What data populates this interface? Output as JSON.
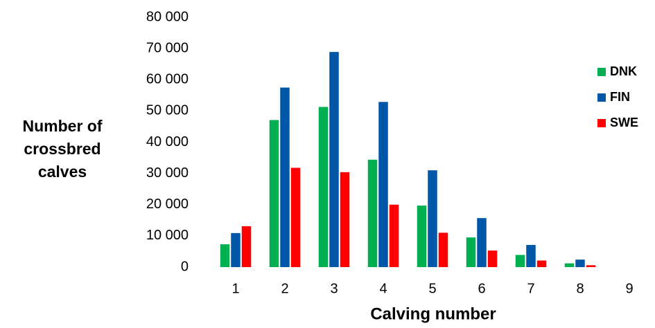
{
  "chart_data": {
    "type": "bar",
    "ylabel": [
      "Number of",
      "crossbred",
      "calves"
    ],
    "xlabel": "Calving number",
    "categories": [
      "1",
      "2",
      "3",
      "4",
      "5",
      "6",
      "7",
      "8",
      "9"
    ],
    "series": [
      {
        "name": "DNK",
        "color": "#00b050",
        "values": [
          7300,
          47100,
          51300,
          34400,
          19700,
          9500,
          3900,
          1200,
          0
        ]
      },
      {
        "name": "FIN",
        "color": "#0057a8",
        "values": [
          10900,
          57500,
          68900,
          52900,
          31000,
          15700,
          7100,
          2400,
          0
        ]
      },
      {
        "name": "SWE",
        "color": "#ff0000",
        "values": [
          13100,
          31800,
          30400,
          20000,
          11000,
          5300,
          2100,
          600,
          0
        ]
      }
    ],
    "ylim": [
      0,
      80000
    ],
    "yticks": [
      {
        "value": 0,
        "label": "0"
      },
      {
        "value": 10000,
        "label": "10 000"
      },
      {
        "value": 20000,
        "label": "20 000"
      },
      {
        "value": 30000,
        "label": "30 000"
      },
      {
        "value": 40000,
        "label": "40 000"
      },
      {
        "value": 50000,
        "label": "50 000"
      },
      {
        "value": 60000,
        "label": "60 000"
      },
      {
        "value": 70000,
        "label": "70 000"
      },
      {
        "value": 80000,
        "label": "80 000"
      }
    ],
    "legend": "top-right"
  }
}
